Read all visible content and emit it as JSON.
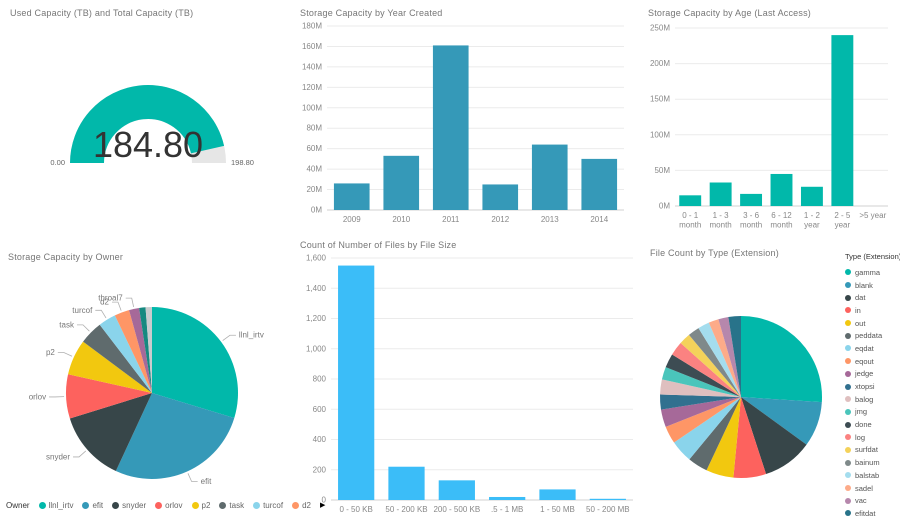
{
  "page": {
    "background": "#ffffff",
    "axis_text_color": "#888888",
    "gridline_color": "#ebebeb",
    "axisline_color": "#d0d0d0",
    "callout_line_color": "#b0b0b0",
    "callout_text_color": "#777777"
  },
  "chart_data": [
    {
      "type": "gauge",
      "title": "Used Capacity (TB) and Total Capacity (TB)",
      "value": 184.8,
      "value_label": "184.80",
      "min": 0.0,
      "min_label": "0.00",
      "max": 198.8,
      "max_label": "198.80",
      "fill_color": "#01B8AA",
      "track_color": "#e6e6e6"
    },
    {
      "type": "bar",
      "title": "Storage Capacity by Year Created",
      "categories": [
        "2009",
        "2010",
        "2011",
        "2012",
        "2013",
        "2014"
      ],
      "values": [
        26,
        53,
        161,
        25,
        64,
        50
      ],
      "value_unit": "M",
      "ylim": [
        0,
        180
      ],
      "ytick_labels": [
        "0M",
        "20M",
        "40M",
        "60M",
        "80M",
        "100M",
        "120M",
        "140M",
        "160M",
        "180M"
      ],
      "color": "#3599B8",
      "grid": true
    },
    {
      "type": "bar",
      "title": "Storage Capacity by Age (Last Access)",
      "categories": [
        [
          "0 - 1",
          "month"
        ],
        [
          "1 - 3",
          "month"
        ],
        [
          "3 - 6",
          "month"
        ],
        [
          "6 - 12",
          "month"
        ],
        [
          "1 - 2",
          "year"
        ],
        [
          "2 - 5",
          "year"
        ],
        [
          ">5 year"
        ]
      ],
      "values": [
        15,
        33,
        17,
        45,
        27,
        240,
        0
      ],
      "value_unit": "M",
      "ylim": [
        0,
        250
      ],
      "ytick_labels": [
        "0M",
        "50M",
        "100M",
        "150M",
        "200M",
        "250M"
      ],
      "color": "#01B8AA",
      "grid": true
    },
    {
      "type": "pie",
      "title": "Storage Capacity by Owner",
      "legend_title": "Owner",
      "legend_position": "bottom",
      "legend_more_icon": "▶",
      "slices": [
        {
          "label": "llnl_irtv",
          "pct": 29.7,
          "color": "#01B8AA",
          "callout": true,
          "in_legend": true
        },
        {
          "label": "efit",
          "pct": 27.2,
          "color": "#3599B8",
          "callout": true,
          "in_legend": true
        },
        {
          "label": "snyder",
          "pct": 13.3,
          "color": "#374649",
          "callout": true,
          "in_legend": true
        },
        {
          "label": "orlov",
          "pct": 8.3,
          "color": "#FD625E",
          "callout": true,
          "in_legend": true
        },
        {
          "label": "p2",
          "pct": 6.7,
          "color": "#F2C80F",
          "callout": true,
          "in_legend": true
        },
        {
          "label": "task",
          "pct": 4.4,
          "color": "#5F6B6D",
          "callout": true,
          "in_legend": true
        },
        {
          "label": "turcof",
          "pct": 3.3,
          "color": "#8AD4EB",
          "callout": true,
          "in_legend": true
        },
        {
          "label": "d2",
          "pct": 2.8,
          "color": "#FE9666",
          "callout": true,
          "in_legend": true
        },
        {
          "label": "throal7",
          "pct": 1.9,
          "color": "#A66999",
          "callout": true,
          "in_legend": false
        },
        {
          "label": "",
          "pct": 1.2,
          "color": "#168980",
          "callout": false,
          "in_legend": false
        },
        {
          "label": "",
          "pct": 1.2,
          "color": "#C9CCCE",
          "callout": false,
          "in_legend": false
        }
      ]
    },
    {
      "type": "bar",
      "title": "Count of Number of Files by File Size",
      "categories": [
        "0 - 50 KB",
        "50 - 200 KB",
        "200 - 500 KB",
        ".5 - 1 MB",
        "1 - 50 MB",
        "50 - 200 MB"
      ],
      "values": [
        1550,
        220,
        130,
        20,
        70,
        8
      ],
      "value_unit": "",
      "ylim": [
        0,
        1600
      ],
      "ytick_labels": [
        "0",
        "200",
        "400",
        "600",
        "800",
        "1,000",
        "1,200",
        "1,400",
        "1,600"
      ],
      "color": "#3BBDF8",
      "grid": true
    },
    {
      "type": "pie",
      "title": "File Count by Type (Extension)",
      "legend_title": "Type (Extension)",
      "legend_position": "right",
      "slices": [
        {
          "label": "gamma",
          "pct": 26,
          "color": "#01B8AA",
          "in_legend": true
        },
        {
          "label": "blank",
          "pct": 9,
          "color": "#3599B8",
          "in_legend": true
        },
        {
          "label": "dat",
          "pct": 10,
          "color": "#374649",
          "in_legend": true
        },
        {
          "label": "in",
          "pct": 6.5,
          "color": "#FD625E",
          "in_legend": true
        },
        {
          "label": "out",
          "pct": 5.5,
          "color": "#F2C80F",
          "in_legend": true
        },
        {
          "label": "peddata",
          "pct": 4,
          "color": "#5F6B6D",
          "in_legend": true
        },
        {
          "label": "eqdat",
          "pct": 4.5,
          "color": "#8AD4EB",
          "in_legend": true
        },
        {
          "label": "eqout",
          "pct": 3.5,
          "color": "#FE9666",
          "in_legend": true
        },
        {
          "label": "jedge",
          "pct": 3.5,
          "color": "#A66999",
          "in_legend": true
        },
        {
          "label": "xtopsi",
          "pct": 3,
          "color": "#31708F",
          "in_legend": true
        },
        {
          "label": "balog",
          "pct": 3,
          "color": "#DFBFBF",
          "in_legend": true
        },
        {
          "label": "jmg",
          "pct": 2.5,
          "color": "#4AC5BB",
          "in_legend": true
        },
        {
          "label": "done",
          "pct": 2.8,
          "color": "#3D4C53",
          "in_legend": true
        },
        {
          "label": "log",
          "pct": 2.8,
          "color": "#FB8281",
          "in_legend": true
        },
        {
          "label": "surfdat",
          "pct": 2.3,
          "color": "#F4D25A",
          "in_legend": true
        },
        {
          "label": "bainum",
          "pct": 2.3,
          "color": "#7F898A",
          "in_legend": true
        },
        {
          "label": "balstab",
          "pct": 2.3,
          "color": "#A4DDEE",
          "in_legend": true
        },
        {
          "label": "sadel",
          "pct": 2,
          "color": "#FDAB89",
          "in_legend": true
        },
        {
          "label": "vac",
          "pct": 2,
          "color": "#B687AC",
          "in_legend": true
        },
        {
          "label": "efitdat",
          "pct": 2.5,
          "color": "#28738A",
          "in_legend": true
        }
      ]
    }
  ]
}
